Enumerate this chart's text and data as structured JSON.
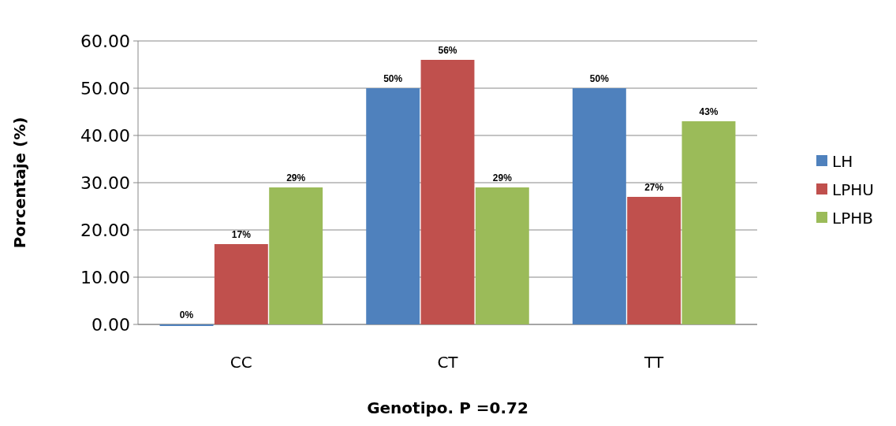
{
  "chart_data": {
    "type": "bar",
    "xlabel": "Genotipo. P =0.72",
    "ylabel": "Porcentaje (%)",
    "categories": [
      "CC",
      "CT",
      "TT"
    ],
    "series": [
      {
        "name": "LH",
        "color": "#4f81bd",
        "values": [
          0,
          50,
          50
        ],
        "value_labels": [
          "0%",
          "50%",
          "50%"
        ]
      },
      {
        "name": "LPHU",
        "color": "#c0504d",
        "values": [
          17,
          56,
          27
        ],
        "value_labels": [
          "17%",
          "56%",
          "27%"
        ]
      },
      {
        "name": "LPHB",
        "color": "#9bbb59",
        "values": [
          29,
          29,
          43
        ],
        "value_labels": [
          "29%",
          "29%",
          "43%"
        ]
      }
    ],
    "ylim": [
      0,
      60
    ],
    "yticks": [
      {
        "value": 0,
        "label": "0.00"
      },
      {
        "value": 10,
        "label": "10.00"
      },
      {
        "value": 20,
        "label": "20.00"
      },
      {
        "value": 30,
        "label": "30.00"
      },
      {
        "value": 40,
        "label": "40.00"
      },
      {
        "value": 50,
        "label": "50.00"
      },
      {
        "value": 60,
        "label": "60.00"
      }
    ],
    "grid": "y",
    "legend": "right"
  }
}
